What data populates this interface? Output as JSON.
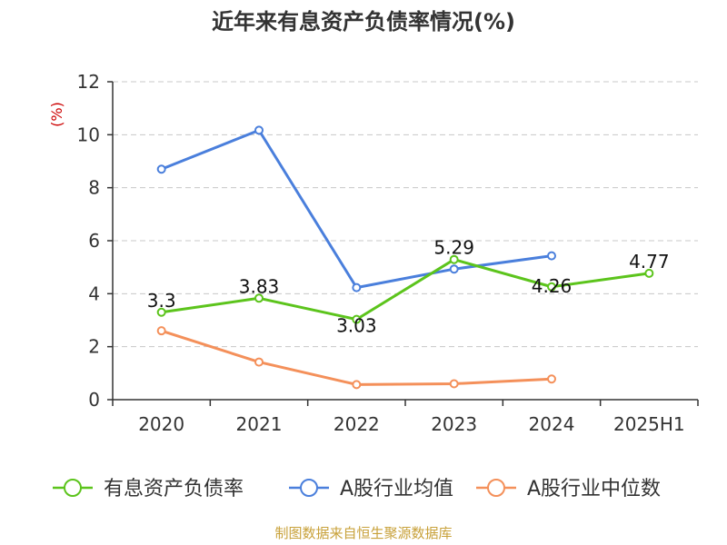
{
  "chart_data": {
    "type": "line",
    "title": "近年来有息资产负债率情况(%)",
    "ylabel": "(%)",
    "xlabel": "",
    "categories": [
      "2020",
      "2021",
      "2022",
      "2023",
      "2024",
      "2025H1"
    ],
    "ylim": [
      0,
      12
    ],
    "yticks": [
      0,
      2,
      4,
      6,
      8,
      10,
      12
    ],
    "grid": true,
    "legend_position": "bottom",
    "series": [
      {
        "name": "有息资产负债率",
        "color": "#5cc41c",
        "values": [
          3.3,
          3.83,
          3.03,
          5.29,
          4.26,
          4.77
        ],
        "labels": [
          "3.3",
          "3.83",
          "3.03",
          "5.29",
          "4.26",
          "4.77"
        ]
      },
      {
        "name": "A股行业均值",
        "color": "#4a7fdc",
        "values": [
          8.7,
          10.17,
          4.23,
          4.93,
          5.43,
          null
        ]
      },
      {
        "name": "A股行业中位数",
        "color": "#f4905a",
        "values": [
          2.6,
          1.42,
          0.57,
          0.6,
          0.78,
          null
        ]
      }
    ],
    "source": "制图数据来自恒生聚源数据库"
  }
}
